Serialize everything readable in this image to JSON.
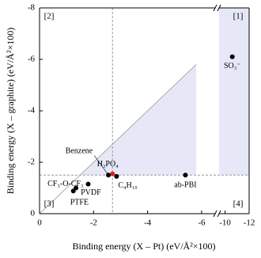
{
  "chart_data": {
    "type": "scatter",
    "x_label": "Binding energy (X – Pt) (eV/Å²×100)",
    "y_label": "Binding energy (X – graphite) (eV/Å²×100)",
    "xlim": [
      0,
      -12
    ],
    "xbreak": [
      -6.5,
      -9.5
    ],
    "xticks": [
      0,
      -2,
      -4,
      -6,
      -10,
      -12
    ],
    "ylim": [
      0,
      -8
    ],
    "yticks": [
      0,
      -2,
      -4,
      -6,
      -8
    ],
    "grid": false,
    "reference_x": -2.7,
    "reference_y": -1.5,
    "diagonal_end": -5.8,
    "region_color": "#e6e8f8",
    "regions": [
      "[1]",
      "[2]",
      "[3]",
      "[4]"
    ],
    "points": [
      {
        "label": "SO₃⁻",
        "x": -10.6,
        "y": -6.1,
        "color": "#000000"
      },
      {
        "label": "ab-PBI",
        "x": -5.4,
        "y": -1.5,
        "color": "#000000"
      },
      {
        "label": "H₃PO₄",
        "x": -2.7,
        "y": -1.55,
        "color": "#e02020"
      },
      {
        "label": "Benzene",
        "x": -2.55,
        "y": -1.5,
        "color": "#000000"
      },
      {
        "label": "C₄H₁₀",
        "x": -2.85,
        "y": -1.45,
        "color": "#000000"
      },
      {
        "label": "CF₃-O-CF₃",
        "x": -1.8,
        "y": -1.15,
        "color": "#000000"
      },
      {
        "label": "PVDF",
        "x": -1.35,
        "y": -1.0,
        "color": "#000000"
      },
      {
        "label": "PTFE",
        "x": -1.25,
        "y": -0.88,
        "color": "#000000"
      }
    ]
  }
}
